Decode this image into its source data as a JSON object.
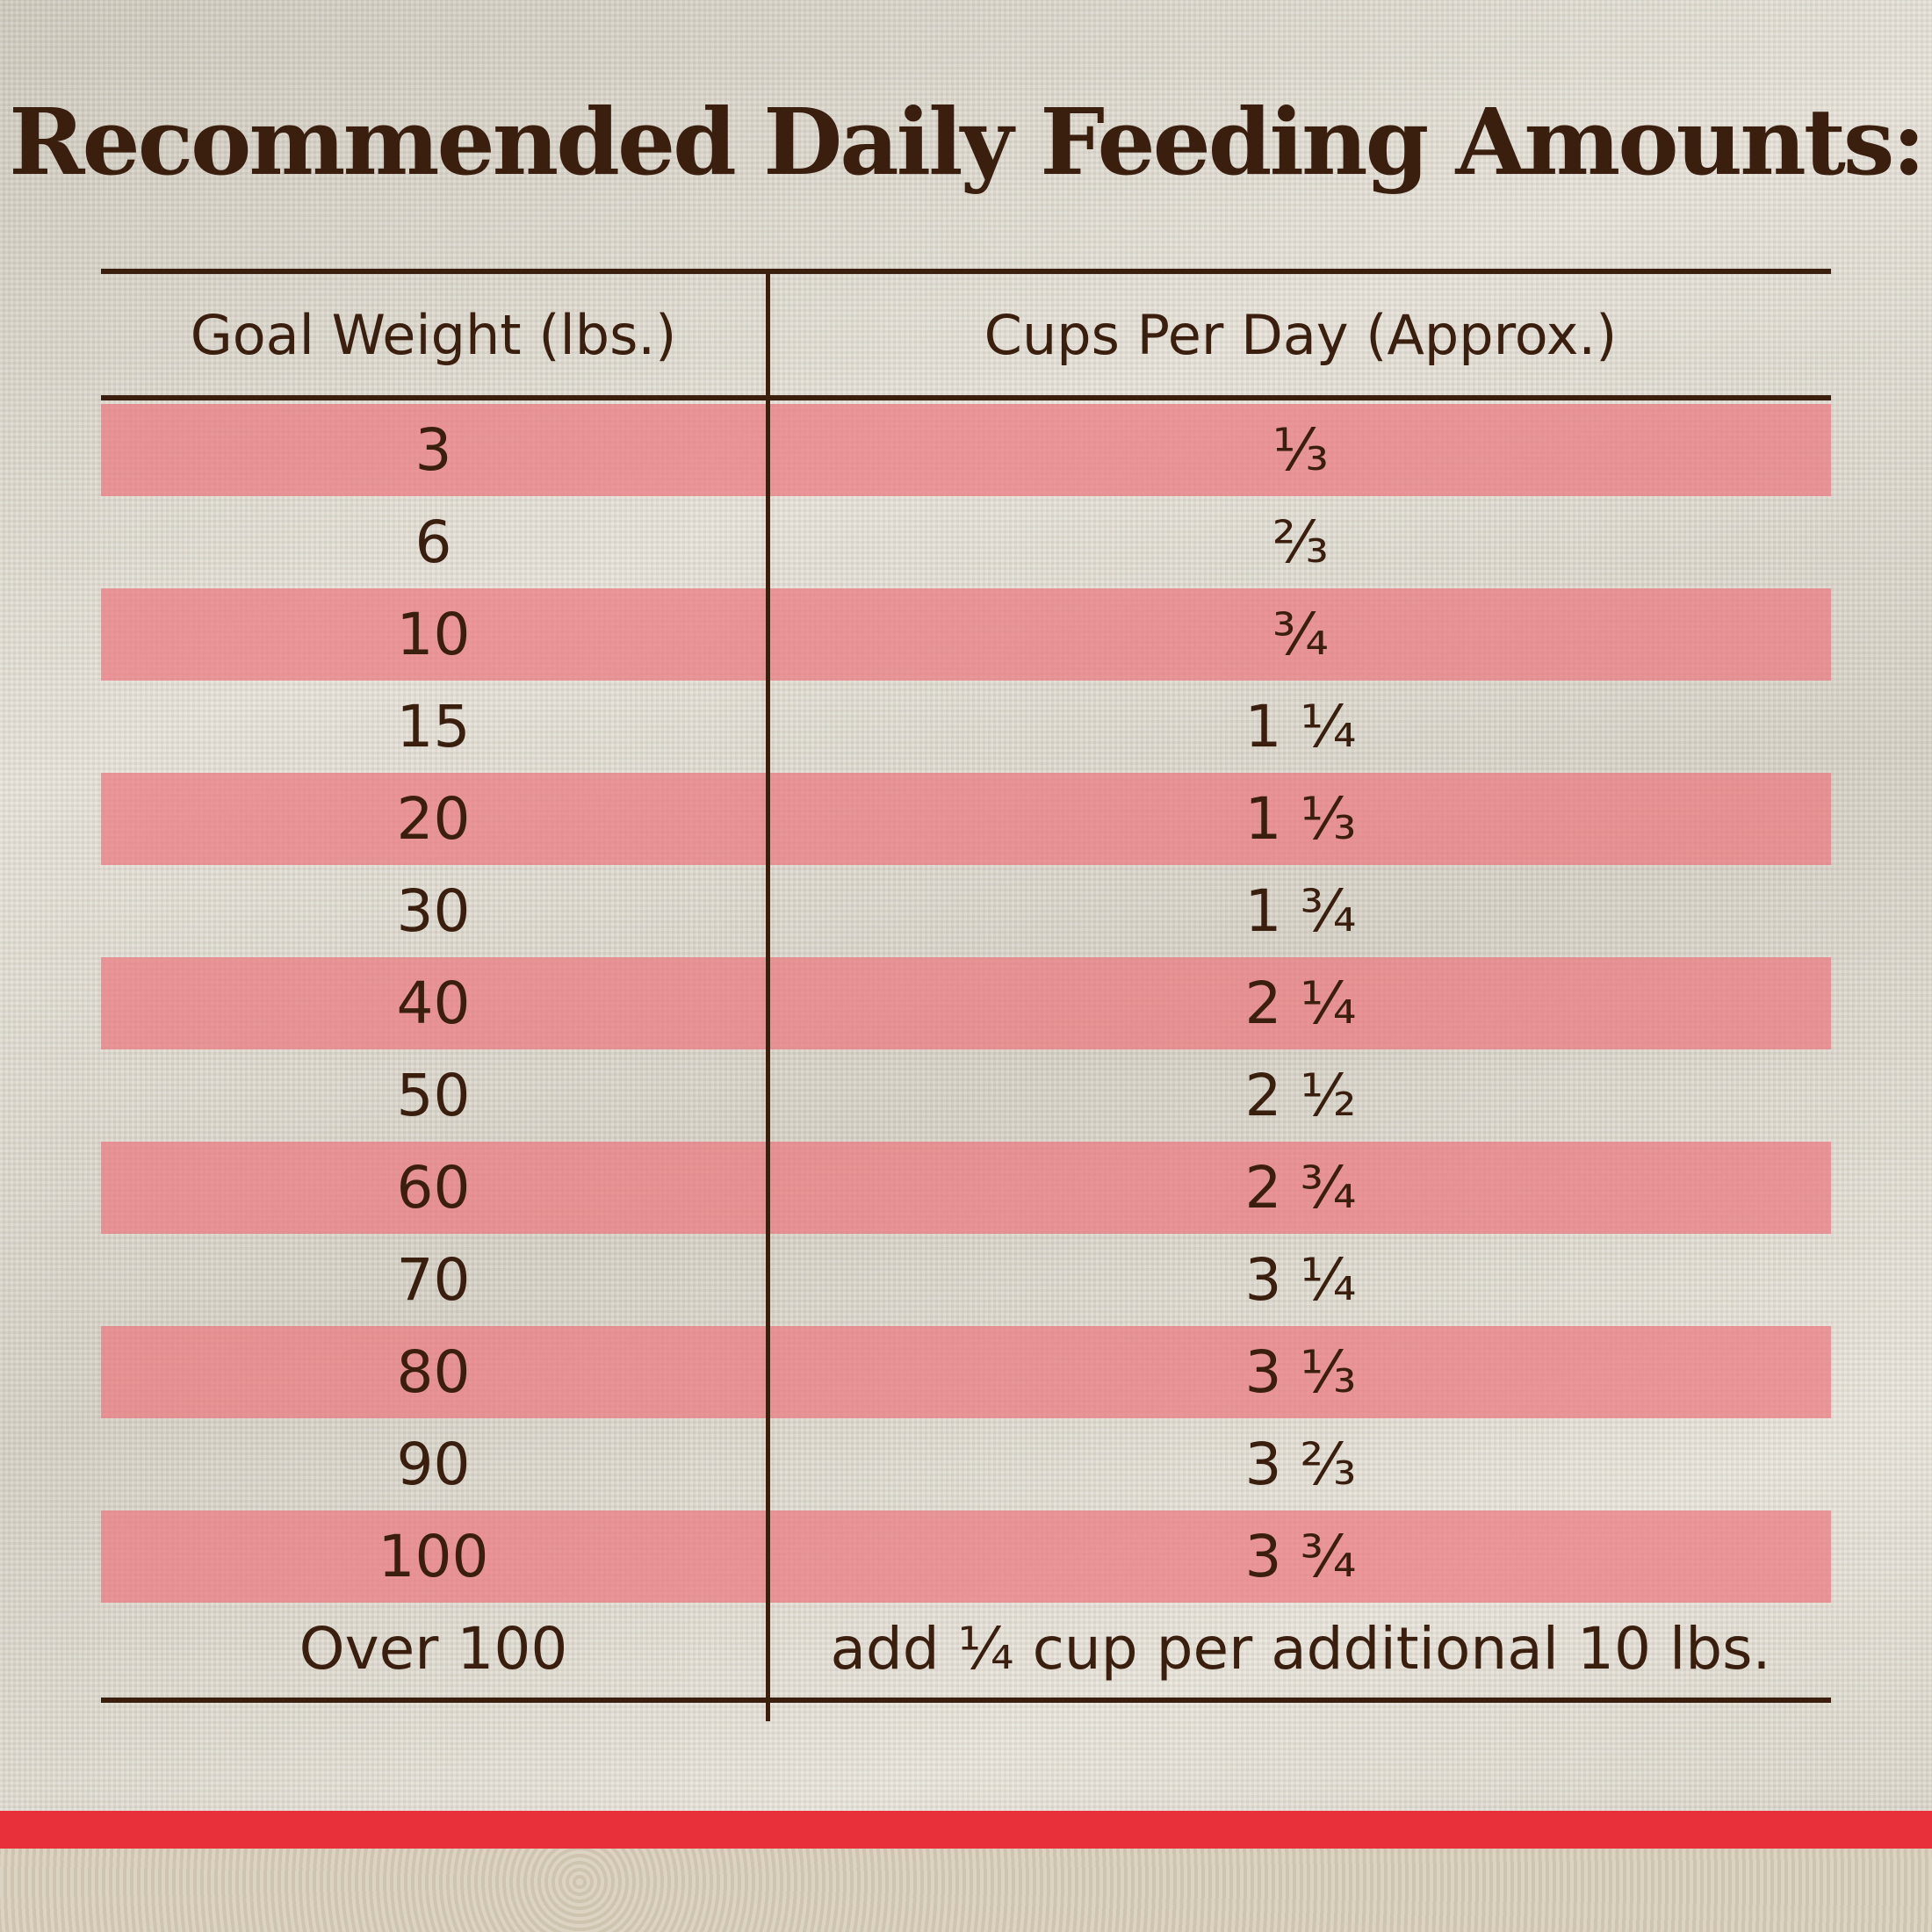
{
  "title": "Recommended Daily Feeding Amounts:",
  "table": {
    "headers": [
      "Goal Weight (lbs.)",
      "Cups Per Day (Approx.)"
    ],
    "rows": [
      [
        "3",
        "⅓"
      ],
      [
        "6",
        "⅔"
      ],
      [
        "10",
        "¾"
      ],
      [
        "15",
        "1 ¼"
      ],
      [
        "20",
        "1 ⅓"
      ],
      [
        "30",
        "1 ¾"
      ],
      [
        "40",
        "2 ¼"
      ],
      [
        "50",
        "2 ½"
      ],
      [
        "60",
        "2 ¾"
      ],
      [
        "70",
        "3 ¼"
      ],
      [
        "80",
        "3 ⅓"
      ],
      [
        "90",
        "3 ⅔"
      ],
      [
        "100",
        "3 ¾"
      ],
      [
        "Over 100",
        "add ¼ cup per additional 10 lbs."
      ]
    ]
  }
}
